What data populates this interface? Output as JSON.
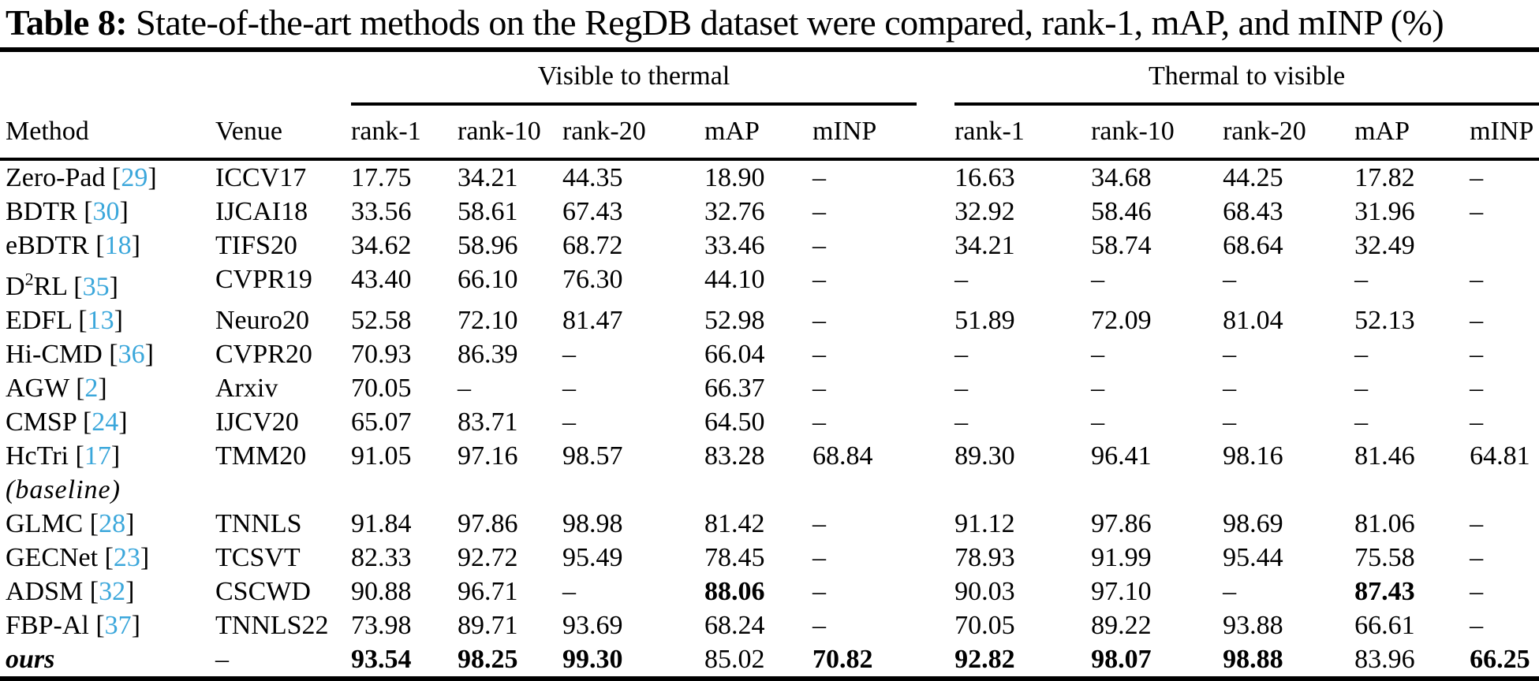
{
  "title": {
    "label": "Table 8:",
    "rest": " State-of-the-art methods on the RegDB dataset were compared, rank-1, mAP, and mINP (%)"
  },
  "group_headers": {
    "visible_to_thermal": "Visible to thermal",
    "thermal_to_visible": "Thermal to visible"
  },
  "columns": {
    "method": "Method",
    "venue": "Venue",
    "metrics": [
      "rank-1",
      "rank-10",
      "rank-20",
      "mAP",
      "mINP"
    ]
  },
  "colors": {
    "citation_link": "#3BA7DB",
    "text": "#000000",
    "background": "#FFFFFF"
  },
  "rows": [
    {
      "method": "Zero-Pad",
      "ref": "29",
      "venue": "ICCV17",
      "v2t": [
        "17.75",
        "34.21",
        "44.35",
        "18.90",
        "–"
      ],
      "t2v": [
        "16.63",
        "34.68",
        "44.25",
        "17.82",
        "–"
      ]
    },
    {
      "method": "BDTR",
      "ref": "30",
      "venue": "IJCAI18",
      "v2t": [
        "33.56",
        "58.61",
        "67.43",
        "32.76",
        "–"
      ],
      "t2v": [
        "32.92",
        "58.46",
        "68.43",
        "31.96",
        "–"
      ]
    },
    {
      "method": "eBDTR",
      "ref": "18",
      "venue": "TIFS20",
      "v2t": [
        "34.62",
        "58.96",
        "68.72",
        "33.46",
        "–"
      ],
      "t2v": [
        "34.21",
        "58.74",
        "68.64",
        "32.49",
        ""
      ]
    },
    {
      "method": "D^2RL",
      "ref": "35",
      "venue": "CVPR19",
      "v2t": [
        "43.40",
        "66.10",
        "76.30",
        "44.10",
        "–"
      ],
      "t2v": [
        "–",
        "–",
        "–",
        "–",
        "–"
      ]
    },
    {
      "method": "EDFL",
      "ref": "13",
      "venue": "Neuro20",
      "v2t": [
        "52.58",
        "72.10",
        "81.47",
        "52.98",
        "–"
      ],
      "t2v": [
        "51.89",
        "72.09",
        "81.04",
        "52.13",
        "–"
      ]
    },
    {
      "method": "Hi-CMD",
      "ref": "36",
      "venue": "CVPR20",
      "v2t": [
        "70.93",
        "86.39",
        "–",
        "66.04",
        "–"
      ],
      "t2v": [
        "–",
        "–",
        "–",
        "–",
        "–"
      ]
    },
    {
      "method": "AGW",
      "ref": "2",
      "venue": "Arxiv",
      "v2t": [
        "70.05",
        "–",
        "–",
        "66.37",
        "–"
      ],
      "t2v": [
        "–",
        "–",
        "–",
        "–",
        "–"
      ]
    },
    {
      "method": "CMSP",
      "ref": "24",
      "venue": "IJCV20",
      "v2t": [
        "65.07",
        "83.71",
        "–",
        "64.50",
        "–"
      ],
      "t2v": [
        "–",
        "–",
        "–",
        "–",
        "–"
      ]
    },
    {
      "method": "HcTri",
      "ref": "17",
      "note": "(baseline)",
      "venue": "TMM20",
      "v2t": [
        "91.05",
        "97.16",
        "98.57",
        "83.28",
        "68.84"
      ],
      "t2v": [
        "89.30",
        "96.41",
        "98.16",
        "81.46",
        "64.81"
      ]
    },
    {
      "method": "GLMC",
      "ref": "28",
      "venue": "TNNLS",
      "v2t": [
        "91.84",
        "97.86",
        "98.98",
        "81.42",
        "–"
      ],
      "t2v": [
        "91.12",
        "97.86",
        "98.69",
        "81.06",
        "–"
      ]
    },
    {
      "method": "GECNet",
      "ref": "23",
      "venue": "TCSVT",
      "v2t": [
        "82.33",
        "92.72",
        "95.49",
        "78.45",
        "–"
      ],
      "t2v": [
        "78.93",
        "91.99",
        "95.44",
        "75.58",
        "–"
      ]
    },
    {
      "method": "ADSM",
      "ref": "32",
      "venue": "CSCWD",
      "v2t": [
        "90.88",
        "96.71",
        "–",
        "88.06",
        "–"
      ],
      "v2t_bold": [
        3
      ],
      "t2v": [
        "90.03",
        "97.10",
        "–",
        "87.43",
        "–"
      ],
      "t2v_bold": [
        3
      ]
    },
    {
      "method": "FBP-Al",
      "ref": "37",
      "venue": "TNNLS22",
      "v2t": [
        "73.98",
        "89.71",
        "93.69",
        "68.24",
        "–"
      ],
      "t2v": [
        "70.05",
        "89.22",
        "93.88",
        "66.61",
        "–"
      ]
    },
    {
      "method": "ours",
      "method_style": "ours",
      "venue": "–",
      "v2t": [
        "93.54",
        "98.25",
        "99.30",
        "85.02",
        "70.82"
      ],
      "v2t_bold": [
        0,
        1,
        2,
        4
      ],
      "t2v": [
        "92.82",
        "98.07",
        "98.88",
        "83.96",
        "66.25"
      ],
      "t2v_bold": [
        0,
        1,
        2,
        4
      ]
    }
  ]
}
